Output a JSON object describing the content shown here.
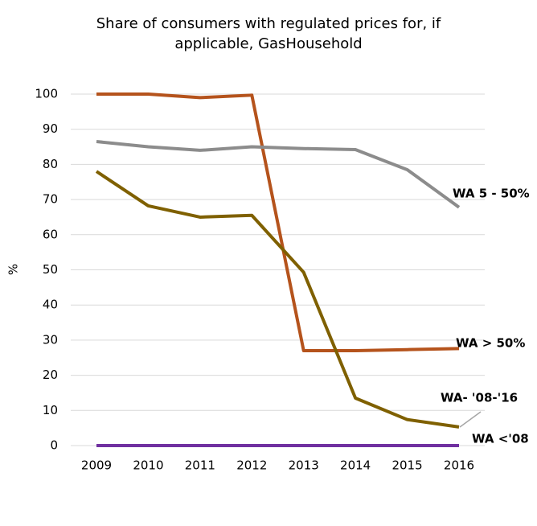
{
  "chart_data": {
    "type": "line",
    "title": [
      "Share of consumers with regulated prices for, if",
      "applicable, GasHousehold"
    ],
    "y_label": "%",
    "categories": [
      "2009",
      "2010",
      "2011",
      "2012",
      "2013",
      "2014",
      "2015",
      "2016"
    ],
    "series": [
      {
        "name": "WA > 50%",
        "color": "#b5531c",
        "label_color": "#c00000",
        "values": [
          100,
          100,
          99,
          99.7,
          27,
          27,
          27.3,
          27.6
        ]
      },
      {
        "name": "WA 5 - 50%",
        "color": "#8c8c8c",
        "label_color": "#8c8c8c",
        "values": [
          86.5,
          85,
          84,
          85,
          84.5,
          84.2,
          78.5,
          67.8
        ]
      },
      {
        "name": "WA- '08-'16",
        "color": "#7f6000",
        "label_color": "#9c6b00",
        "values": [
          78,
          68.2,
          65,
          65.5,
          49.3,
          13.5,
          7.4,
          5.3
        ]
      },
      {
        "name": "WA <'08",
        "color": "#7030a0",
        "label_color": "#7030a0",
        "values": [
          0,
          0,
          0,
          0,
          0,
          0,
          0,
          0
        ]
      }
    ],
    "ylim": [
      0,
      100
    ],
    "yticks": [
      0,
      10,
      20,
      30,
      40,
      50,
      60,
      70,
      80,
      90,
      100
    ],
    "grid": true
  }
}
